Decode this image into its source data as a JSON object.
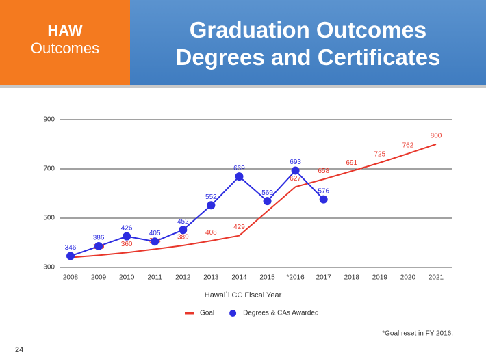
{
  "header": {
    "tag": [
      "HAW",
      "Outcomes"
    ],
    "title": [
      "Graduation Outcomes",
      "Degrees and Certificates"
    ]
  },
  "chart_data": {
    "type": "line",
    "categories": [
      "2008",
      "2009",
      "2010",
      "2011",
      "2012",
      "2013",
      "2014",
      "2015",
      "*2016",
      "2017",
      "2018",
      "2019",
      "2020",
      "2021"
    ],
    "series": [
      {
        "name": "Goal",
        "color": "#e8372b",
        "values": [
          340,
          349,
          360,
          374,
          389,
          408,
          429,
          528,
          627,
          658,
          691,
          725,
          762,
          800
        ],
        "value_labels": [
          null,
          "349",
          "360",
          "374",
          "389",
          "408",
          "429",
          null,
          "627",
          "658",
          "691",
          "725",
          "762",
          "800"
        ]
      },
      {
        "name": "Degrees & CAs Awarded",
        "color": "#2d2de0",
        "values": [
          346,
          386,
          426,
          405,
          452,
          552,
          669,
          569,
          693,
          576,
          null,
          null,
          null,
          null
        ]
      }
    ],
    "ylim": [
      300,
      900
    ],
    "yticks": [
      300,
      500,
      700,
      900
    ],
    "grid": true,
    "xlabel": "Hawai`i CC Fiscal Year",
    "legend": "bottom"
  },
  "footnote": "*Goal reset in FY 2016.",
  "page_number": "24"
}
